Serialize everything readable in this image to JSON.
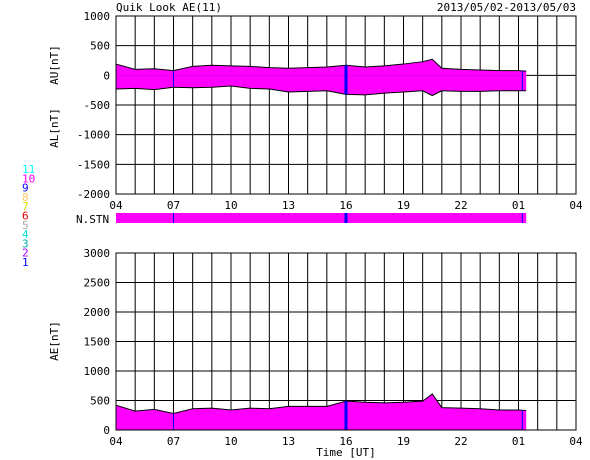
{
  "header": {
    "title": "Quik Look AE(11)",
    "date_range": "2013/05/02-2013/05/03"
  },
  "colors": {
    "fill": "#ff00ff",
    "gridline": "#000000",
    "blue_marker": "#0000ff",
    "station_colors": [
      "#0000ff",
      "#aa00ff",
      "#00aaaa",
      "#00dddd",
      "#aaaaaa",
      "#dd0000",
      "#dddd00",
      "#ffcc66",
      "#0000ff",
      "#ff00ff",
      "#00ffff"
    ]
  },
  "station_legend": [
    "11",
    "10",
    "9",
    "8",
    "7",
    "6",
    "5",
    "4",
    "3",
    "2",
    "1"
  ],
  "station_bar": {
    "label": "N.STN",
    "coverage_end_hour": 25.4,
    "blue_markers_hours": [
      7.0,
      16.0,
      25.2
    ]
  },
  "chart_data": [
    {
      "type": "area",
      "panel": "AU/AL",
      "ylabel_upper": "AU[nT]",
      "ylabel_lower": "AL[nT]",
      "ylim": [
        -2000,
        1000
      ],
      "yticks": [
        1000,
        500,
        0,
        -500,
        -1000,
        -1500,
        -2000
      ],
      "xlim": [
        4,
        28
      ],
      "xtick_labels": [
        "04",
        "07",
        "10",
        "13",
        "16",
        "19",
        "22",
        "01",
        "04"
      ],
      "grid": true,
      "x_hours": [
        4,
        5,
        6,
        7,
        8,
        9,
        10,
        11,
        12,
        13,
        14,
        15,
        16,
        17,
        18,
        19,
        20,
        20.5,
        21,
        22,
        23,
        24,
        25,
        25.4
      ],
      "series": [
        {
          "values": [
            190,
            100,
            110,
            80,
            150,
            170,
            160,
            150,
            130,
            120,
            130,
            140,
            170,
            140,
            160,
            190,
            230,
            270,
            120,
            100,
            90,
            80,
            80,
            70
          ]
        },
        {
          "values": [
            -230,
            -220,
            -240,
            -200,
            -210,
            -200,
            -180,
            -220,
            -230,
            -280,
            -270,
            -260,
            -320,
            -330,
            -300,
            -280,
            -260,
            -340,
            -260,
            -270,
            -270,
            -260,
            -260,
            -260
          ]
        }
      ],
      "blue_markers_hours": [
        7.0,
        16.0,
        25.2
      ]
    },
    {
      "type": "area",
      "panel": "AE",
      "ylabel": "AE[nT]",
      "ylim": [
        0,
        3000
      ],
      "yticks": [
        3000,
        2500,
        2000,
        1500,
        1000,
        500,
        0
      ],
      "xlim": [
        4,
        28
      ],
      "xtick_labels": [
        "04",
        "07",
        "10",
        "13",
        "16",
        "19",
        "22",
        "01",
        "04"
      ],
      "xlabel": "Time [UT]",
      "grid": true,
      "x_hours": [
        4,
        5,
        6,
        7,
        8,
        9,
        10,
        11,
        12,
        13,
        14,
        15,
        16,
        17,
        18,
        19,
        20,
        20.5,
        21,
        22,
        23,
        24,
        25,
        25.4
      ],
      "series": [
        {
          "values": [
            420,
            320,
            350,
            280,
            360,
            370,
            340,
            370,
            360,
            400,
            400,
            400,
            490,
            470,
            460,
            470,
            490,
            610,
            380,
            370,
            360,
            340,
            340,
            330
          ]
        }
      ],
      "blue_markers_hours": [
        7.0,
        16.0,
        25.2
      ]
    }
  ]
}
